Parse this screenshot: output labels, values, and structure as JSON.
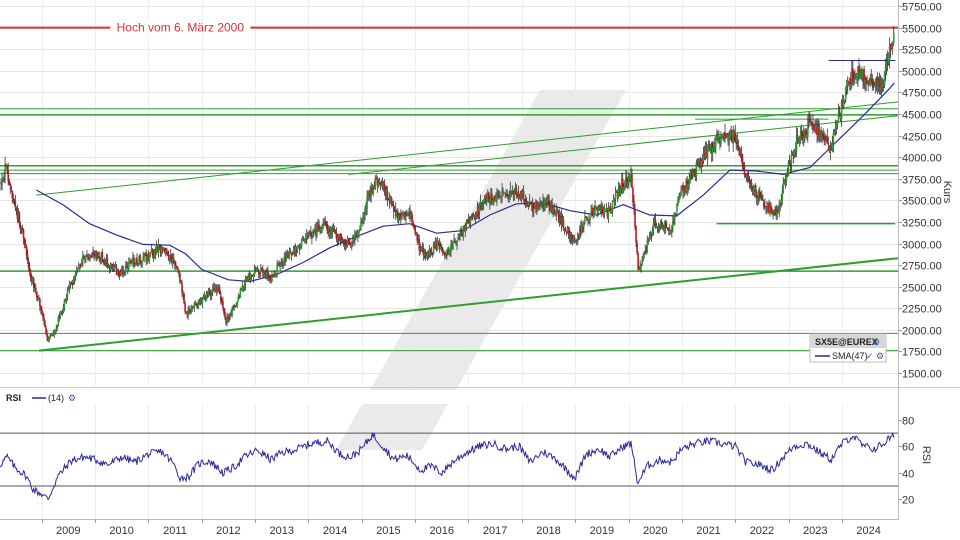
{
  "chart_data": [
    {
      "type": "candlestick",
      "instrument": "SX5E@EUREX",
      "interval": "weekly",
      "y_axis_label": "Kurs",
      "y_ticks": [
        1500,
        1750,
        2000,
        2250,
        2500,
        2750,
        3000,
        3250,
        3500,
        3750,
        4000,
        4250,
        4500,
        4750,
        5000,
        5250,
        5500,
        5750
      ],
      "y_tick_labels": [
        "1500.00",
        "1750.00",
        "2000.00",
        "2250.00",
        "2500.00",
        "2750.00",
        "3000.00",
        "3250.00",
        "3500.00",
        "3750.00",
        "4000.00",
        "4250.00",
        "4500.00",
        "4750.00",
        "5000.00",
        "5250.00",
        "5500.00",
        "5750.00"
      ],
      "ylim": [
        1350,
        5820
      ],
      "x_tick_labels": [
        "2009",
        "2010",
        "2011",
        "2012",
        "2013",
        "2014",
        "2015",
        "2016",
        "2017",
        "2018",
        "2019",
        "2020",
        "2021",
        "2022",
        "2023",
        "2024"
      ],
      "xlim": [
        2008.22,
        2025.05
      ],
      "up_color": "#2e9e2e",
      "down_color": "#c8141e",
      "price_anchors": [
        [
          2008.22,
          3700
        ],
        [
          2008.33,
          3880
        ],
        [
          2008.48,
          3500
        ],
        [
          2008.65,
          3100
        ],
        [
          2008.78,
          2650
        ],
        [
          2008.95,
          2350
        ],
        [
          2009.12,
          1900
        ],
        [
          2009.25,
          2000
        ],
        [
          2009.5,
          2450
        ],
        [
          2009.75,
          2800
        ],
        [
          2010.0,
          2900
        ],
        [
          2010.2,
          2800
        ],
        [
          2010.45,
          2650
        ],
        [
          2010.7,
          2780
        ],
        [
          2011.0,
          2850
        ],
        [
          2011.2,
          2950
        ],
        [
          2011.4,
          2850
        ],
        [
          2011.55,
          2750
        ],
        [
          2011.7,
          2200
        ],
        [
          2011.9,
          2300
        ],
        [
          2012.0,
          2350
        ],
        [
          2012.3,
          2500
        ],
        [
          2012.45,
          2100
        ],
        [
          2012.6,
          2250
        ],
        [
          2012.8,
          2550
        ],
        [
          2013.0,
          2700
        ],
        [
          2013.3,
          2600
        ],
        [
          2013.45,
          2750
        ],
        [
          2013.7,
          2900
        ],
        [
          2014.0,
          3100
        ],
        [
          2014.3,
          3200
        ],
        [
          2014.5,
          3100
        ],
        [
          2014.75,
          3000
        ],
        [
          2014.95,
          3150
        ],
        [
          2015.15,
          3600
        ],
        [
          2015.3,
          3750
        ],
        [
          2015.5,
          3550
        ],
        [
          2015.7,
          3300
        ],
        [
          2015.9,
          3350
        ],
        [
          2016.05,
          3000
        ],
        [
          2016.2,
          2850
        ],
        [
          2016.45,
          3000
        ],
        [
          2016.55,
          2850
        ],
        [
          2016.8,
          3050
        ],
        [
          2017.0,
          3250
        ],
        [
          2017.3,
          3500
        ],
        [
          2017.5,
          3550
        ],
        [
          2017.75,
          3600
        ],
        [
          2018.0,
          3550
        ],
        [
          2018.2,
          3400
        ],
        [
          2018.4,
          3500
        ],
        [
          2018.6,
          3400
        ],
        [
          2018.85,
          3150
        ],
        [
          2019.0,
          3000
        ],
        [
          2019.15,
          3250
        ],
        [
          2019.4,
          3400
        ],
        [
          2019.6,
          3350
        ],
        [
          2019.85,
          3650
        ],
        [
          2020.05,
          3800
        ],
        [
          2020.18,
          2700
        ],
        [
          2020.3,
          2900
        ],
        [
          2020.5,
          3250
        ],
        [
          2020.8,
          3200
        ],
        [
          2020.95,
          3550
        ],
        [
          2021.2,
          3800
        ],
        [
          2021.45,
          4050
        ],
        [
          2021.7,
          4200
        ],
        [
          2021.95,
          4250
        ],
        [
          2022.05,
          4150
        ],
        [
          2022.2,
          3750
        ],
        [
          2022.45,
          3550
        ],
        [
          2022.7,
          3350
        ],
        [
          2022.8,
          3400
        ],
        [
          2022.95,
          3800
        ],
        [
          2023.15,
          4200
        ],
        [
          2023.4,
          4350
        ],
        [
          2023.6,
          4300
        ],
        [
          2023.8,
          4100
        ],
        [
          2023.95,
          4500
        ],
        [
          2024.1,
          4850
        ],
        [
          2024.25,
          5000
        ],
        [
          2024.45,
          4900
        ],
        [
          2024.6,
          4800
        ],
        [
          2024.78,
          4900
        ],
        [
          2024.88,
          5200
        ],
        [
          2024.98,
          5450
        ]
      ],
      "sma": {
        "legend_label": "SMA(47)",
        "color": "#2a2a9a",
        "points": [
          [
            2008.9,
            3620
          ],
          [
            2009.4,
            3450
          ],
          [
            2009.9,
            3230
          ],
          [
            2010.4,
            3100
          ],
          [
            2010.9,
            2990
          ],
          [
            2011.4,
            2980
          ],
          [
            2011.7,
            2880
          ],
          [
            2012.0,
            2700
          ],
          [
            2012.5,
            2580
          ],
          [
            2012.9,
            2560
          ],
          [
            2013.4,
            2640
          ],
          [
            2013.9,
            2780
          ],
          [
            2014.4,
            2950
          ],
          [
            2014.9,
            3080
          ],
          [
            2015.4,
            3200
          ],
          [
            2015.9,
            3230
          ],
          [
            2016.4,
            3120
          ],
          [
            2016.9,
            3150
          ],
          [
            2017.4,
            3330
          ],
          [
            2017.9,
            3460
          ],
          [
            2018.4,
            3470
          ],
          [
            2018.9,
            3380
          ],
          [
            2019.4,
            3330
          ],
          [
            2019.9,
            3450
          ],
          [
            2020.4,
            3330
          ],
          [
            2020.9,
            3320
          ],
          [
            2021.4,
            3560
          ],
          [
            2021.9,
            3850
          ],
          [
            2022.4,
            3840
          ],
          [
            2022.9,
            3800
          ],
          [
            2023.4,
            3880
          ],
          [
            2023.9,
            4180
          ],
          [
            2024.4,
            4480
          ],
          [
            2024.9,
            4800
          ],
          [
            2024.98,
            4860
          ]
        ]
      },
      "annotation": {
        "text": "Hoch vom 6. März 2000",
        "y": 5500,
        "x": 2011.6
      },
      "horizontal_lines": [
        {
          "y": 5500,
          "x1": 2008.22,
          "x2": 2025.05,
          "color": "#e03030",
          "width": 2
        },
        {
          "y": 5120,
          "x1": 2023.75,
          "x2": 2025.0,
          "color": "#2a2a9a",
          "width": 1
        },
        {
          "y": 4560,
          "x1": 2008.22,
          "x2": 2025.05,
          "color": "#2e9e2e",
          "width": 1
        },
        {
          "y": 4490,
          "x1": 2008.22,
          "x2": 2025.05,
          "color": "#2e9e2e",
          "width": 1.5
        },
        {
          "y": 3900,
          "x1": 2008.22,
          "x2": 2025.05,
          "color": "#2e9e2e",
          "width": 1.5
        },
        {
          "y": 3850,
          "x1": 2008.22,
          "x2": 2025.05,
          "color": "#2e9e2e",
          "width": 1
        },
        {
          "y": 3810,
          "x1": 2008.22,
          "x2": 2025.05,
          "color": "#2e9e2e",
          "width": 1
        },
        {
          "y": 3230,
          "x1": 2021.65,
          "x2": 2025.0,
          "color": "#2e9e2e",
          "width": 1.5
        },
        {
          "y": 2680,
          "x1": 2008.22,
          "x2": 2025.05,
          "color": "#2e9e2e",
          "width": 1.5
        },
        {
          "y": 1960,
          "x1": 2008.22,
          "x2": 2025.05,
          "color": "#2e9e2e",
          "width": 1
        },
        {
          "y": 1760,
          "x1": 2008.22,
          "x2": 2025.05,
          "color": "#2e9e2e",
          "width": 1
        }
      ],
      "trend_lines": [
        {
          "x1": 2008.95,
          "y1": 1760,
          "x2": 2025.05,
          "y2": 2830,
          "color": "#2e9e2e",
          "width": 2
        },
        {
          "x1": 2008.9,
          "y1": 3560,
          "x2": 2025.05,
          "y2": 4640,
          "color": "#2e9e2e",
          "width": 1
        },
        {
          "x1": 2014.75,
          "y1": 3800,
          "x2": 2025.05,
          "y2": 4480,
          "color": "#2e9e2e",
          "width": 1
        },
        {
          "x1": 2021.25,
          "y1": 4440,
          "x2": 2023.75,
          "y2": 4440,
          "color": "#2e9e2e",
          "width": 1
        }
      ]
    },
    {
      "type": "line",
      "indicator": "RSI",
      "period_label": "(14)",
      "color": "#2a2a9a",
      "y_ticks": [
        20,
        40,
        60,
        80
      ],
      "ylim": [
        5,
        92
      ],
      "reference_lines": [
        30,
        70
      ],
      "points": [
        [
          2008.22,
          46
        ],
        [
          2008.35,
          52
        ],
        [
          2008.5,
          44
        ],
        [
          2008.7,
          38
        ],
        [
          2008.85,
          27
        ],
        [
          2009.0,
          24
        ],
        [
          2009.12,
          20
        ],
        [
          2009.3,
          37
        ],
        [
          2009.55,
          49
        ],
        [
          2009.8,
          52
        ],
        [
          2010.0,
          50
        ],
        [
          2010.25,
          46
        ],
        [
          2010.5,
          52
        ],
        [
          2010.75,
          48
        ],
        [
          2011.0,
          54
        ],
        [
          2011.25,
          56
        ],
        [
          2011.45,
          48
        ],
        [
          2011.6,
          36
        ],
        [
          2011.75,
          37
        ],
        [
          2011.95,
          47
        ],
        [
          2012.15,
          49
        ],
        [
          2012.4,
          40
        ],
        [
          2012.6,
          44
        ],
        [
          2012.8,
          52
        ],
        [
          2013.05,
          57
        ],
        [
          2013.3,
          50
        ],
        [
          2013.5,
          55
        ],
        [
          2013.8,
          58
        ],
        [
          2014.05,
          62
        ],
        [
          2014.35,
          64
        ],
        [
          2014.6,
          54
        ],
        [
          2014.8,
          52
        ],
        [
          2015.0,
          58
        ],
        [
          2015.2,
          69
        ],
        [
          2015.4,
          60
        ],
        [
          2015.6,
          50
        ],
        [
          2015.85,
          53
        ],
        [
          2016.1,
          42
        ],
        [
          2016.3,
          45
        ],
        [
          2016.5,
          40
        ],
        [
          2016.7,
          48
        ],
        [
          2016.95,
          55
        ],
        [
          2017.2,
          60
        ],
        [
          2017.45,
          62
        ],
        [
          2017.7,
          58
        ],
        [
          2017.95,
          60
        ],
        [
          2018.15,
          48
        ],
        [
          2018.4,
          56
        ],
        [
          2018.65,
          50
        ],
        [
          2018.9,
          40
        ],
        [
          2019.0,
          36
        ],
        [
          2019.2,
          54
        ],
        [
          2019.45,
          58
        ],
        [
          2019.65,
          52
        ],
        [
          2019.9,
          60
        ],
        [
          2020.05,
          62
        ],
        [
          2020.17,
          32
        ],
        [
          2020.35,
          45
        ],
        [
          2020.6,
          50
        ],
        [
          2020.8,
          48
        ],
        [
          2021.0,
          58
        ],
        [
          2021.25,
          62
        ],
        [
          2021.5,
          64
        ],
        [
          2021.75,
          62
        ],
        [
          2022.0,
          60
        ],
        [
          2022.2,
          48
        ],
        [
          2022.45,
          46
        ],
        [
          2022.7,
          42
        ],
        [
          2022.9,
          52
        ],
        [
          2023.1,
          60
        ],
        [
          2023.35,
          62
        ],
        [
          2023.6,
          55
        ],
        [
          2023.8,
          50
        ],
        [
          2024.0,
          62
        ],
        [
          2024.2,
          68
        ],
        [
          2024.4,
          60
        ],
        [
          2024.6,
          58
        ],
        [
          2024.78,
          62
        ],
        [
          2024.88,
          66
        ],
        [
          2024.98,
          68
        ]
      ]
    }
  ],
  "watermark": {
    "label": ""
  },
  "legend": {
    "instrument": "SX5E@EUREX",
    "sma_label": "SMA(47)",
    "check_glyph": "✓",
    "settings_icon": "gear-icon",
    "settings_glyph": "⚙"
  },
  "rsi_header": {
    "title": "RSI",
    "period": "(14)",
    "settings_glyph": "⚙"
  },
  "axes": {
    "price_axis_title": "Kurs",
    "rsi_axis_title": "RSI"
  }
}
